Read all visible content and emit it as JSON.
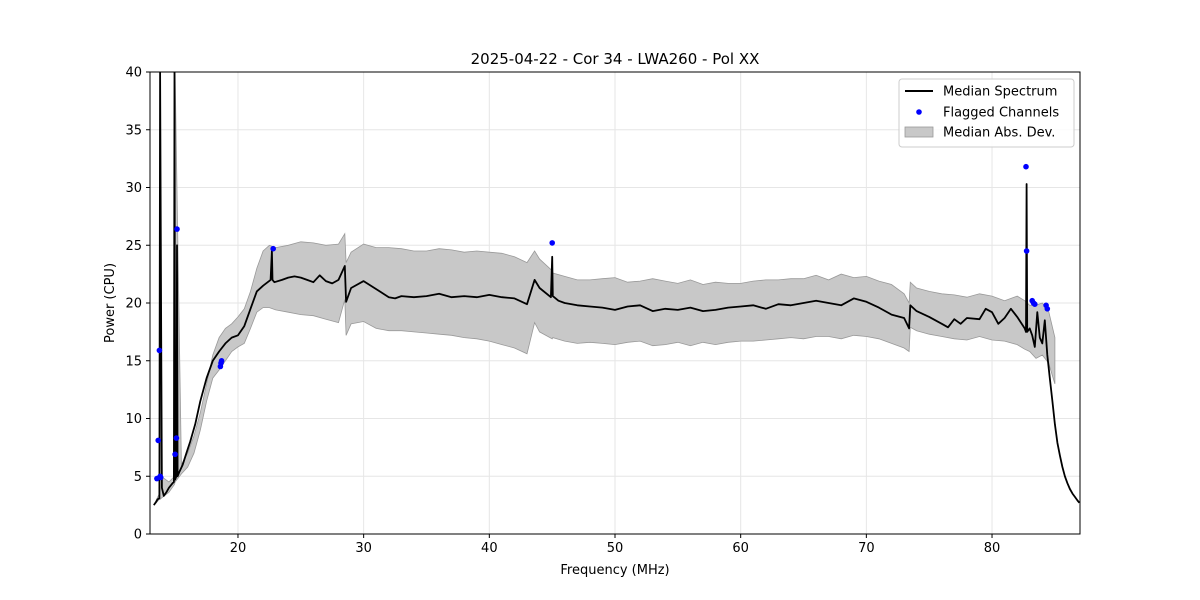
{
  "chart_data": {
    "type": "line",
    "title": "2025-04-22 - Cor 34 - LWA260 - Pol XX",
    "xlabel": "Frequency (MHz)",
    "ylabel": "Power (CPU)",
    "xlim": [
      13.0,
      87.0
    ],
    "ylim": [
      0,
      40
    ],
    "xticks": [
      20,
      30,
      40,
      50,
      60,
      70,
      80
    ],
    "yticks": [
      0,
      5,
      10,
      15,
      20,
      25,
      30,
      35,
      40
    ],
    "grid": true,
    "legend_position": "top-right",
    "colors": {
      "median": "#000000",
      "flagged": "#0000ff",
      "mad_fill": "#c8c8c8",
      "mad_edge": "#999999"
    },
    "legend": [
      "Median Spectrum",
      "Flagged Channels",
      "Median Abs. Dev."
    ],
    "series": [
      {
        "name": "Median Spectrum",
        "x": [
          13.3,
          13.5,
          13.6,
          13.75,
          13.8,
          13.9,
          13.95,
          14.1,
          14.3,
          14.5,
          14.8,
          14.9,
          14.95,
          15.0,
          15.1,
          15.15,
          15.2,
          15.35,
          15.6,
          15.9,
          16.2,
          16.6,
          17.0,
          17.5,
          18.0,
          18.5,
          19.0,
          19.5,
          20.0,
          20.5,
          21.0,
          21.5,
          22.0,
          22.6,
          22.7,
          22.75,
          22.9,
          23.5,
          24.0,
          24.5,
          25.0,
          25.5,
          26.0,
          26.5,
          27.0,
          27.5,
          28.0,
          28.5,
          28.6,
          29.0,
          30.0,
          31.0,
          32.0,
          32.5,
          33.0,
          34.0,
          35.0,
          36.0,
          37.0,
          38.0,
          39.0,
          40.0,
          41.0,
          42.0,
          43.0,
          43.6,
          44.0,
          44.9,
          45.0,
          45.05,
          45.5,
          46.0,
          47.0,
          48.0,
          49.0,
          50.0,
          51.0,
          52.0,
          53.0,
          54.0,
          55.0,
          56.0,
          57.0,
          58.0,
          59.0,
          60.0,
          61.0,
          62.0,
          63.0,
          64.0,
          65.0,
          66.0,
          67.0,
          68.0,
          69.0,
          70.0,
          71.0,
          72.0,
          73.0,
          73.4,
          73.5,
          74.0,
          75.0,
          76.0,
          76.5,
          77.0,
          77.5,
          78.0,
          79.0,
          79.5,
          80.0,
          80.5,
          81.0,
          81.5,
          82.0,
          82.6,
          82.7,
          82.75,
          82.8,
          83.0,
          83.2,
          83.4,
          83.6,
          83.8,
          84.0,
          84.2,
          84.4,
          84.6,
          84.8,
          85.0,
          85.2,
          85.4,
          85.6,
          85.8,
          86.0,
          86.2,
          86.4,
          86.6,
          86.8,
          86.95
        ],
        "y": [
          2.5,
          2.8,
          3.0,
          3.1,
          40.0,
          15.0,
          4.0,
          3.3,
          3.6,
          4.0,
          4.4,
          4.5,
          40.0,
          4.7,
          5.0,
          25.0,
          5.0,
          5.4,
          6.0,
          7.0,
          8.0,
          9.5,
          11.5,
          13.5,
          15.0,
          15.8,
          16.5,
          17.0,
          17.2,
          18.0,
          19.5,
          21.0,
          21.5,
          22.0,
          24.5,
          22.0,
          21.8,
          22.0,
          22.2,
          22.3,
          22.2,
          22.0,
          21.8,
          22.4,
          21.9,
          21.7,
          22.0,
          23.2,
          20.1,
          21.3,
          21.9,
          21.2,
          20.5,
          20.4,
          20.6,
          20.5,
          20.6,
          20.8,
          20.5,
          20.6,
          20.5,
          20.7,
          20.5,
          20.4,
          19.9,
          22.0,
          21.3,
          20.5,
          24.0,
          20.6,
          20.2,
          20.0,
          19.8,
          19.7,
          19.6,
          19.4,
          19.7,
          19.8,
          19.3,
          19.5,
          19.4,
          19.6,
          19.3,
          19.4,
          19.6,
          19.7,
          19.8,
          19.5,
          19.9,
          19.8,
          20.0,
          20.2,
          20.0,
          19.8,
          20.4,
          20.1,
          19.6,
          19.0,
          18.7,
          17.8,
          19.8,
          19.3,
          18.8,
          18.2,
          17.9,
          18.6,
          18.2,
          18.7,
          18.6,
          19.5,
          19.2,
          18.2,
          18.7,
          19.5,
          18.8,
          17.8,
          17.5,
          30.3,
          17.5,
          17.8,
          17.2,
          16.2,
          19.2,
          17.0,
          16.5,
          18.5,
          15.5,
          13.5,
          11.5,
          9.5,
          7.9,
          6.8,
          5.8,
          5.0,
          4.4,
          3.9,
          3.5,
          3.2,
          2.9,
          2.7
        ]
      },
      {
        "name": "Flagged Channels",
        "points": [
          [
            13.55,
            4.8
          ],
          [
            13.65,
            8.1
          ],
          [
            13.75,
            15.9
          ],
          [
            13.8,
            5.0
          ],
          [
            13.85,
            4.9
          ],
          [
            15.0,
            6.9
          ],
          [
            15.1,
            8.3
          ],
          [
            15.15,
            26.4
          ],
          [
            18.6,
            14.5
          ],
          [
            18.65,
            14.8
          ],
          [
            18.7,
            15.0
          ],
          [
            22.8,
            24.7
          ],
          [
            45.0,
            25.2
          ],
          [
            82.7,
            31.8
          ],
          [
            82.75,
            24.5
          ],
          [
            83.2,
            20.2
          ],
          [
            83.3,
            20.0
          ],
          [
            83.4,
            19.9
          ],
          [
            84.3,
            19.8
          ],
          [
            84.4,
            19.5
          ]
        ]
      },
      {
        "name": "Median Abs. Dev.",
        "x": [
          13.3,
          13.75,
          13.8,
          13.9,
          14.5,
          14.95,
          15.0,
          15.5,
          16.0,
          16.5,
          17.0,
          17.5,
          18.0,
          18.5,
          19.0,
          19.5,
          20.0,
          20.5,
          21.0,
          21.5,
          22.0,
          22.5,
          23.0,
          24.0,
          25.0,
          26.0,
          27.0,
          28.0,
          28.5,
          28.6,
          29.0,
          30.0,
          31.0,
          32.0,
          33.0,
          34.0,
          35.0,
          36.0,
          37.0,
          38.0,
          39.0,
          40.0,
          41.0,
          42.0,
          43.0,
          43.6,
          44.0,
          45.0,
          45.05,
          46.0,
          47.0,
          48.0,
          49.0,
          50.0,
          51.0,
          52.0,
          53.0,
          54.0,
          55.0,
          56.0,
          57.0,
          58.0,
          59.0,
          60.0,
          61.0,
          62.0,
          63.0,
          64.0,
          65.0,
          66.0,
          67.0,
          68.0,
          69.0,
          70.0,
          71.0,
          72.0,
          73.0,
          73.4,
          73.5,
          74.0,
          75.0,
          76.0,
          77.0,
          78.0,
          79.0,
          80.0,
          81.0,
          82.0,
          82.6,
          83.0,
          83.5,
          84.0,
          84.5,
          85.0
        ],
        "upper": [
          2.5,
          3.5,
          40.0,
          5.0,
          4.5,
          5.0,
          40.0,
          6.0,
          7.0,
          8.5,
          10.5,
          13.0,
          15.5,
          17.0,
          17.8,
          18.2,
          18.8,
          19.5,
          21.0,
          23.0,
          24.5,
          25.0,
          24.8,
          25.0,
          25.3,
          25.2,
          25.0,
          25.1,
          26.0,
          23.5,
          24.4,
          25.1,
          24.8,
          24.8,
          24.7,
          24.5,
          24.5,
          24.7,
          24.6,
          24.4,
          24.5,
          24.4,
          24.3,
          24.0,
          23.5,
          24.5,
          23.8,
          22.8,
          22.6,
          22.3,
          22.0,
          22.0,
          22.1,
          22.2,
          21.8,
          21.9,
          22.1,
          21.9,
          21.7,
          22.0,
          21.6,
          21.8,
          21.7,
          21.7,
          21.9,
          22.0,
          22.0,
          22.1,
          22.1,
          22.4,
          22.0,
          22.5,
          22.2,
          22.3,
          21.9,
          21.6,
          20.8,
          20.0,
          21.8,
          21.3,
          21.0,
          20.8,
          20.7,
          20.5,
          20.8,
          20.6,
          20.2,
          20.6,
          20.2,
          19.8,
          19.8,
          20.0,
          19.3,
          17.0
        ],
        "lower": [
          2.5,
          3.0,
          3.0,
          3.1,
          3.6,
          4.3,
          4.5,
          5.2,
          5.8,
          7.0,
          9.0,
          11.5,
          13.5,
          14.2,
          15.0,
          15.8,
          16.2,
          16.5,
          17.8,
          19.2,
          19.6,
          19.6,
          19.4,
          19.2,
          19.0,
          18.9,
          18.6,
          18.3,
          20.3,
          17.2,
          18.2,
          18.4,
          17.8,
          17.6,
          17.6,
          17.5,
          17.4,
          17.3,
          17.2,
          17.0,
          16.9,
          16.7,
          16.4,
          16.1,
          15.6,
          18.3,
          17.5,
          16.9,
          17.0,
          16.7,
          16.5,
          16.6,
          16.5,
          16.4,
          16.6,
          16.7,
          16.3,
          16.4,
          16.6,
          16.3,
          16.6,
          16.4,
          16.6,
          16.7,
          16.7,
          16.8,
          16.9,
          17.0,
          16.9,
          17.1,
          17.1,
          16.9,
          17.2,
          17.1,
          16.9,
          16.5,
          16.1,
          15.8,
          17.9,
          17.6,
          17.3,
          17.1,
          16.9,
          16.8,
          17.1,
          16.8,
          16.7,
          16.4,
          16.0,
          15.8,
          15.2,
          15.5,
          14.8,
          13.0
        ]
      }
    ]
  }
}
